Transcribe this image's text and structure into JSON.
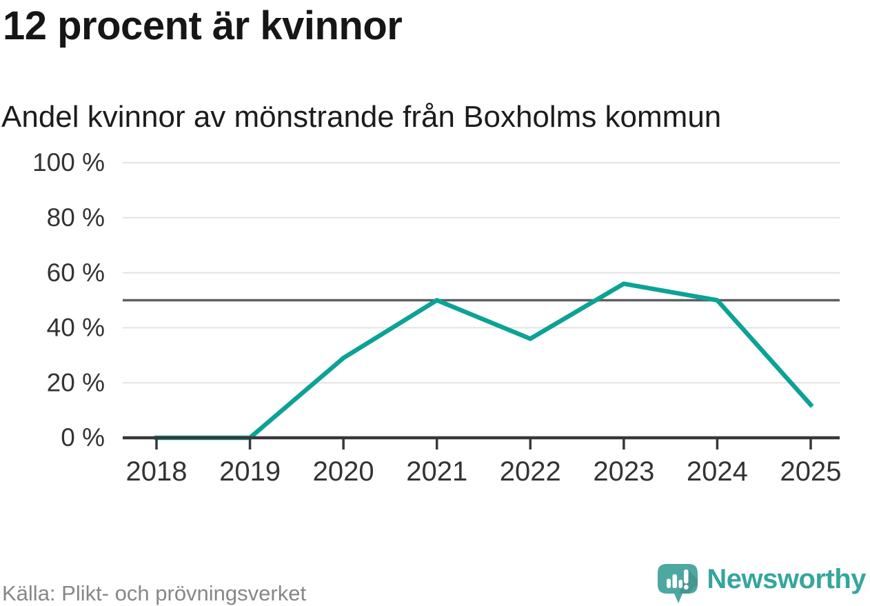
{
  "header": {
    "title": "12 procent är kvinnor",
    "subtitle": "Andel kvinnor av mönstrande från Boxholms kommun"
  },
  "footer": {
    "source": "Källa: Plikt- och prövningsverket",
    "brand_name": "Newsworthy",
    "brand_icon": "newsworthy-speech-bubble-chart-icon"
  },
  "colors": {
    "line": "#0ca296",
    "reference_line": "#5d5e63",
    "gridline": "#e2e2e2",
    "axis": "#38383a",
    "axis_label": "#333333",
    "title_text": "#161616",
    "source_text": "#87878b",
    "brand_teal": "#35a69d",
    "brand_icon_fill": "#4da8a1"
  },
  "chart_data": {
    "type": "line",
    "title": "12 procent är kvinnor",
    "subtitle": "Andel kvinnor av mönstrande från Boxholms kommun",
    "x": [
      2018,
      2019,
      2020,
      2021,
      2022,
      2023,
      2024,
      2025
    ],
    "xtick_labels": [
      "2018",
      "2019",
      "2020",
      "2021",
      "2022",
      "2023",
      "2024",
      "2025"
    ],
    "series": [
      {
        "name": "Andel kvinnor av mönstrande",
        "values": [
          0,
          0,
          29,
          50,
          36,
          56,
          50,
          12
        ]
      }
    ],
    "unit": "%",
    "ylim": [
      0,
      100
    ],
    "yticks": [
      0,
      20,
      40,
      60,
      80,
      100
    ],
    "ytick_labels": [
      "0 %",
      "20 %",
      "40 %",
      "60 %",
      "80 %",
      "100 %"
    ],
    "reference_line": 50,
    "grid": true,
    "legend_position": "none",
    "source": "Källa: Plikt- och prövningsverket"
  }
}
